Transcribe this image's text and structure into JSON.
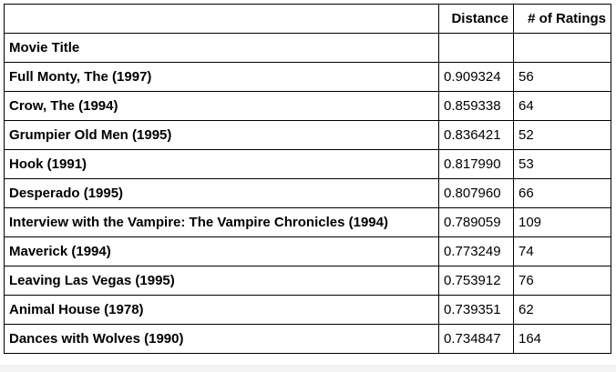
{
  "table": {
    "columns": {
      "blank": "",
      "distance": "Distance",
      "num_ratings": "# of Ratings"
    },
    "index_name": "Movie Title",
    "rows": [
      {
        "title": "Full Monty, The (1997)",
        "distance": "0.909324",
        "num_ratings": "56"
      },
      {
        "title": "Crow, The (1994)",
        "distance": "0.859338",
        "num_ratings": "64"
      },
      {
        "title": "Grumpier Old Men (1995)",
        "distance": "0.836421",
        "num_ratings": "52"
      },
      {
        "title": "Hook (1991)",
        "distance": "0.817990",
        "num_ratings": "53"
      },
      {
        "title": "Desperado (1995)",
        "distance": "0.807960",
        "num_ratings": "66"
      },
      {
        "title": "Interview with the Vampire: The Vampire Chronicles (1994)",
        "distance": "0.789059",
        "num_ratings": "109"
      },
      {
        "title": "Maverick (1994)",
        "distance": "0.773249",
        "num_ratings": "74"
      },
      {
        "title": "Leaving Las Vegas (1995)",
        "distance": "0.753912",
        "num_ratings": "76"
      },
      {
        "title": "Animal House (1978)",
        "distance": "0.739351",
        "num_ratings": "62"
      },
      {
        "title": "Dances with Wolves (1990)",
        "distance": "0.734847",
        "num_ratings": "164"
      }
    ]
  }
}
